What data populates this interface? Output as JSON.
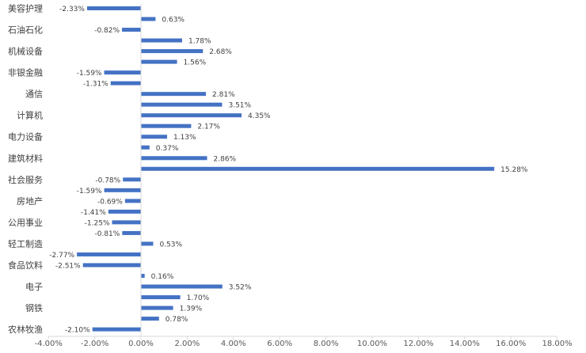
{
  "chart_data": {
    "type": "bar",
    "orientation": "horizontal",
    "title": "",
    "xlabel": "",
    "ylabel": "",
    "xlim": [
      -4,
      18
    ],
    "x_ticks": [
      "-4.00%",
      "-2.00%",
      "0.00%",
      "2.00%",
      "4.00%",
      "6.00%",
      "8.00%",
      "10.00%",
      "12.00%",
      "14.00%",
      "16.00%",
      "18.00%"
    ],
    "tick_values": [
      -4,
      -2,
      0,
      2,
      4,
      6,
      8,
      10,
      12,
      14,
      16,
      18
    ],
    "grid": false,
    "legend": "none",
    "bar_color": "#4472C4",
    "category_labels": [
      "美容护理",
      "石油石化",
      "机械设备",
      "非银金融",
      "通信",
      "计算机",
      "电力设备",
      "建筑材料",
      "社会服务",
      "房地产",
      "公用事业",
      "轻工制造",
      "食品饮料",
      "电子",
      "钢铁",
      "农林牧渔"
    ],
    "values": [
      -2.33,
      0.63,
      -0.82,
      1.78,
      2.68,
      1.56,
      -1.59,
      -1.31,
      2.81,
      3.51,
      4.35,
      2.17,
      1.13,
      0.37,
      2.86,
      15.28,
      -0.78,
      -1.59,
      -0.69,
      -1.41,
      -1.25,
      -0.81,
      0.53,
      -2.77,
      -2.51,
      0.16,
      3.52,
      1.7,
      1.39,
      0.78,
      -2.1
    ],
    "value_labels": [
      "-2.33%",
      "0.63%",
      "-0.82%",
      "1.78%",
      "2.68%",
      "1.56%",
      "-1.59%",
      "-1.31%",
      "2.81%",
      "3.51%",
      "4.35%",
      "2.17%",
      "1.13%",
      "0.37%",
      "2.86%",
      "15.28%",
      "-0.78%",
      "-1.59%",
      "-0.69%",
      "-1.41%",
      "-1.25%",
      "-0.81%",
      "0.53%",
      "-2.77%",
      "-2.51%",
      "0.16%",
      "3.52%",
      "1.70%",
      "1.39%",
      "0.78%",
      "-2.10%"
    ]
  }
}
